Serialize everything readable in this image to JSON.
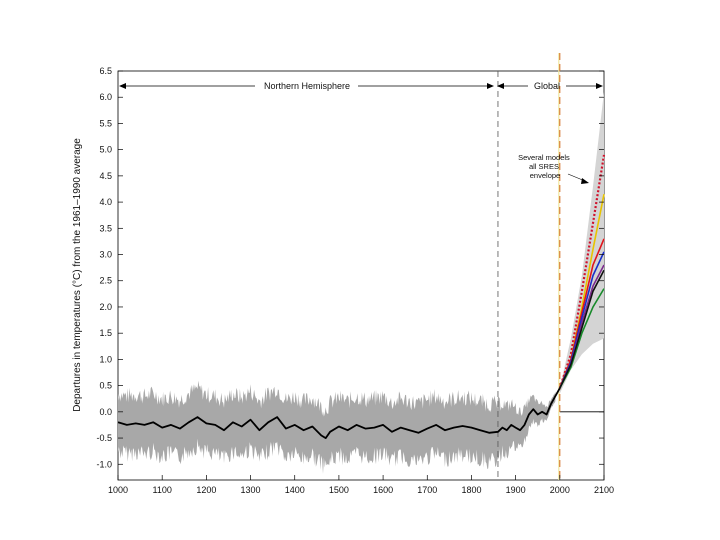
{
  "chart_data": {
    "type": "line",
    "ylabel": "Departures in temperatures (°C) from the 1961–1990 average",
    "xlim": [
      1000,
      2100
    ],
    "ylim": [
      -1.3,
      6.5
    ],
    "x_ticks": [
      1000,
      1100,
      1200,
      1300,
      1400,
      1500,
      1600,
      1700,
      1800,
      1900,
      2000,
      2100
    ],
    "y_ticks": [
      "6.5",
      "6.0",
      "5.5",
      "5.0",
      "4.5",
      "4.0",
      "3.5",
      "3.0",
      "2.5",
      "2.0",
      "1.5",
      "1.0",
      "0.5",
      "0.0",
      "-0.5",
      "-1.0"
    ],
    "regions": {
      "northern": {
        "label": "Northern Hemisphere",
        "from": 1000,
        "to": 1860
      },
      "global": {
        "label": "Global",
        "from": 1860,
        "to": 2100
      }
    },
    "divider_year": 1860,
    "present_year": 2000,
    "annotation": {
      "lines": [
        "Several models",
        "all SRES",
        "envelope"
      ],
      "points_to": [
        2080,
        3.5
      ]
    },
    "historical": {
      "name": "Northern Hemisphere reconstruction",
      "x": [
        1000,
        1020,
        1040,
        1060,
        1080,
        1100,
        1120,
        1140,
        1160,
        1180,
        1200,
        1220,
        1240,
        1260,
        1280,
        1300,
        1320,
        1340,
        1360,
        1380,
        1400,
        1420,
        1440,
        1460,
        1470,
        1480,
        1500,
        1520,
        1540,
        1560,
        1580,
        1600,
        1620,
        1640,
        1660,
        1680,
        1700,
        1720,
        1740,
        1760,
        1780,
        1800,
        1820,
        1840,
        1860,
        1870,
        1880,
        1890,
        1900,
        1910,
        1920,
        1930,
        1940,
        1950,
        1960,
        1970,
        1980,
        1990,
        2000
      ],
      "y": [
        -0.2,
        -0.25,
        -0.22,
        -0.25,
        -0.2,
        -0.3,
        -0.25,
        -0.32,
        -0.2,
        -0.1,
        -0.22,
        -0.25,
        -0.35,
        -0.2,
        -0.28,
        -0.15,
        -0.35,
        -0.2,
        -0.1,
        -0.32,
        -0.25,
        -0.35,
        -0.28,
        -0.45,
        -0.5,
        -0.38,
        -0.28,
        -0.35,
        -0.25,
        -0.32,
        -0.3,
        -0.25,
        -0.38,
        -0.3,
        -0.35,
        -0.4,
        -0.32,
        -0.25,
        -0.35,
        -0.3,
        -0.27,
        -0.3,
        -0.35,
        -0.4,
        -0.38,
        -0.3,
        -0.35,
        -0.25,
        -0.3,
        -0.35,
        -0.25,
        -0.05,
        0.05,
        -0.05,
        0.0,
        -0.05,
        0.15,
        0.3,
        0.45
      ]
    },
    "uncertainty_halfwidth": 0.55,
    "projection_envelope": {
      "x": [
        2000,
        2025,
        2050,
        2075,
        2100
      ],
      "upper": [
        0.45,
        1.4,
        2.6,
        4.3,
        6.1
      ],
      "lower": [
        0.35,
        0.8,
        1.1,
        1.3,
        1.4
      ]
    },
    "scenarios": [
      {
        "name": "dotted",
        "color": "#d0112b",
        "dashed": true,
        "x": [
          2000,
          2025,
          2050,
          2075,
          2100
        ],
        "y": [
          0.45,
          1.1,
          2.3,
          3.6,
          4.9
        ]
      },
      {
        "name": "yellow",
        "color": "#e8c400",
        "x": [
          2000,
          2025,
          2050,
          2075,
          2100
        ],
        "y": [
          0.45,
          1.0,
          2.0,
          3.1,
          4.15
        ]
      },
      {
        "name": "red",
        "color": "#e0141b",
        "x": [
          2000,
          2025,
          2050,
          2075,
          2100
        ],
        "y": [
          0.45,
          1.0,
          1.9,
          2.8,
          3.3
        ]
      },
      {
        "name": "blue",
        "color": "#1a2fc8",
        "x": [
          2000,
          2025,
          2050,
          2075,
          2100
        ],
        "y": [
          0.45,
          0.95,
          1.8,
          2.6,
          3.05
        ]
      },
      {
        "name": "purple",
        "color": "#7a2a8c",
        "x": [
          2000,
          2025,
          2050,
          2075,
          2100
        ],
        "y": [
          0.45,
          0.9,
          1.7,
          2.4,
          2.8
        ]
      },
      {
        "name": "green",
        "color": "#178a2a",
        "x": [
          2000,
          2025,
          2050,
          2075,
          2100
        ],
        "y": [
          0.45,
          0.85,
          1.5,
          2.0,
          2.35
        ]
      },
      {
        "name": "black",
        "color": "#111111",
        "x": [
          2000,
          2025,
          2050,
          2075,
          2100
        ],
        "y": [
          0.45,
          0.9,
          1.6,
          2.3,
          2.7
        ]
      }
    ]
  }
}
